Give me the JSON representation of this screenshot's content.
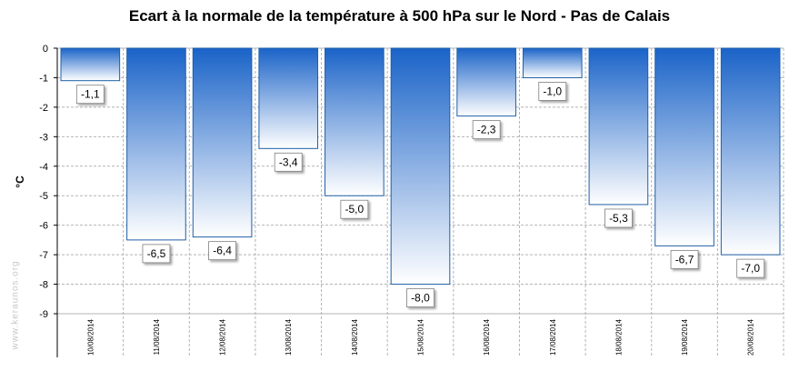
{
  "watermark": "www.keraunos.org",
  "chart_data": {
    "type": "bar",
    "title": "Ecart à la normale de la température à 500 hPa sur le Nord - Pas de Calais",
    "ylabel": "°C",
    "xlabel": "",
    "ylim": [
      -9,
      0
    ],
    "yticks": [
      "0",
      "-1",
      "-2",
      "-3",
      "-4",
      "-5",
      "-6",
      "-7",
      "-8",
      "-9"
    ],
    "grid": true,
    "categories": [
      "10/08/2014",
      "11/08/2014",
      "12/08/2014",
      "13/08/2014",
      "14/08/2014",
      "15/08/2014",
      "16/08/2014",
      "17/08/2014",
      "18/08/2014",
      "19/08/2014",
      "20/08/2014"
    ],
    "values": [
      -1.1,
      -6.5,
      -6.4,
      -3.4,
      -5.0,
      -8.0,
      -2.3,
      -1.0,
      -5.3,
      -6.7,
      -7.0
    ],
    "data_labels": [
      "-1,1",
      "-6,5",
      "-6,4",
      "-3,4",
      "-5,0",
      "-8,0",
      "-2,3",
      "-1,0",
      "-5,3",
      "-6,7",
      "-7,0"
    ],
    "colors": {
      "bar_top": "#1a63c8",
      "bar_bottom": "#ffffff",
      "bar_stroke": "#1f5fa8",
      "grid": "#b4b4b4"
    }
  }
}
